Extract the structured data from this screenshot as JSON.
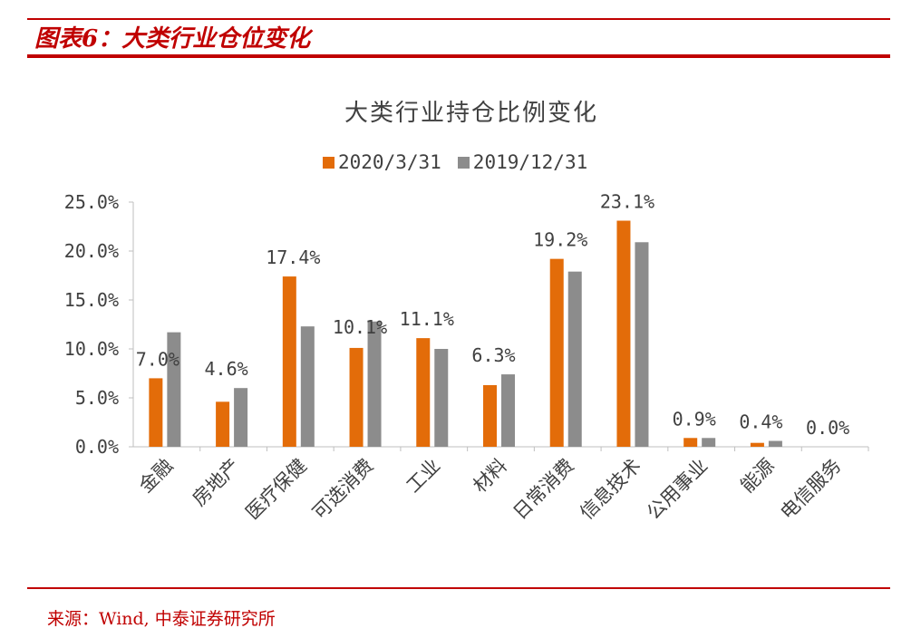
{
  "header": {
    "title": "图表6：大类行业仓位变化"
  },
  "footer": {
    "source": "来源：Wind, 中泰证券研究所"
  },
  "colors": {
    "brand_red": "#c00000",
    "series_2020": "#e36c09",
    "series_2019": "#8c8c8c"
  },
  "chart_data": {
    "type": "bar",
    "title": "大类行业持仓比例变化",
    "xlabel": "",
    "ylabel": "",
    "ylim": [
      0,
      25
    ],
    "y_ticks": [
      "0.0%",
      "5.0%",
      "10.0%",
      "15.0%",
      "20.0%",
      "25.0%"
    ],
    "grid": false,
    "legend_position": "top",
    "categories": [
      "金融",
      "房地产",
      "医疗保健",
      "可选消费",
      "工业",
      "材料",
      "日常消费",
      "信息技术",
      "公用事业",
      "能源",
      "电信服务"
    ],
    "series": [
      {
        "name": "2020/3/31",
        "values": [
          7.0,
          4.6,
          17.4,
          10.1,
          11.1,
          6.3,
          19.2,
          23.1,
          0.9,
          0.4,
          0.0
        ],
        "labels": [
          "7.0%",
          "4.6%",
          "17.4%",
          "10.1%",
          "11.1%",
          "6.3%",
          "19.2%",
          "23.1%",
          "0.9%",
          "0.4%",
          "0.0%"
        ]
      },
      {
        "name": "2019/12/31",
        "values": [
          11.7,
          6.0,
          12.3,
          12.8,
          10.0,
          7.4,
          17.9,
          20.9,
          0.9,
          0.6,
          0.0
        ]
      }
    ]
  }
}
